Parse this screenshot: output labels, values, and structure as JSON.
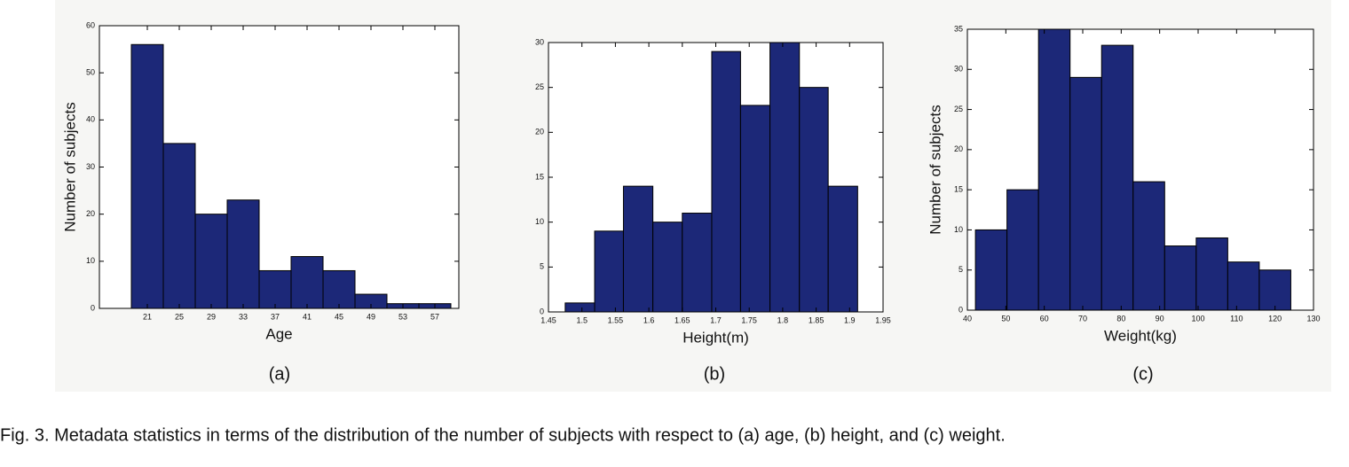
{
  "chart_data": [
    {
      "type": "histogram",
      "label": "(a)",
      "x_label": "Age",
      "y_label": "Number of subjects",
      "bins": [
        19,
        23,
        27,
        31,
        35,
        39,
        43,
        47,
        51,
        55,
        59
      ],
      "values": [
        56,
        35,
        20,
        23,
        8,
        11,
        8,
        3,
        1,
        1
      ],
      "color": "#1c2878",
      "xlim": [
        15,
        60
      ],
      "xticks": [
        21,
        25,
        29,
        33,
        37,
        41,
        45,
        49,
        53,
        57
      ],
      "ylim": [
        0,
        60
      ],
      "yticks": [
        0,
        10,
        20,
        30,
        40,
        50,
        60
      ]
    },
    {
      "type": "histogram",
      "label": "(b)",
      "x_label": "Height(m)",
      "bins": [
        1.475,
        1.519,
        1.562,
        1.606,
        1.65,
        1.694,
        1.737,
        1.781,
        1.825,
        1.868,
        1.912
      ],
      "values": [
        1,
        9,
        14,
        10,
        11,
        29,
        23,
        30,
        25,
        14
      ],
      "color": "#1c2878",
      "xlim": [
        1.45,
        1.95
      ],
      "xticks": [
        1.45,
        1.5,
        1.55,
        1.6,
        1.65,
        1.7,
        1.75,
        1.8,
        1.85,
        1.9,
        1.95
      ],
      "ylim": [
        0,
        30
      ],
      "yticks": [
        0,
        5,
        10,
        15,
        20,
        25,
        30
      ]
    },
    {
      "type": "histogram",
      "label": "(c)",
      "x_label": "Weight(kg)",
      "y_label": "Number of subjects",
      "bins": [
        42.1,
        50.3,
        58.5,
        66.7,
        74.9,
        83.1,
        91.3,
        99.5,
        107.7,
        115.9,
        124.1
      ],
      "values": [
        10,
        15,
        35,
        29,
        33,
        16,
        8,
        9,
        6,
        5
      ],
      "color": "#1c2878",
      "xlim": [
        40,
        130
      ],
      "xticks": [
        40,
        50,
        60,
        70,
        80,
        90,
        100,
        110,
        120,
        130
      ],
      "ylim": [
        0,
        35
      ],
      "yticks": [
        0,
        5,
        10,
        15,
        20,
        25,
        30,
        35
      ]
    }
  ],
  "caption": "Fig. 3. Metadata statistics in terms of the distribution of the number of subjects with respect to (a) age, (b) height, and (c) weight."
}
